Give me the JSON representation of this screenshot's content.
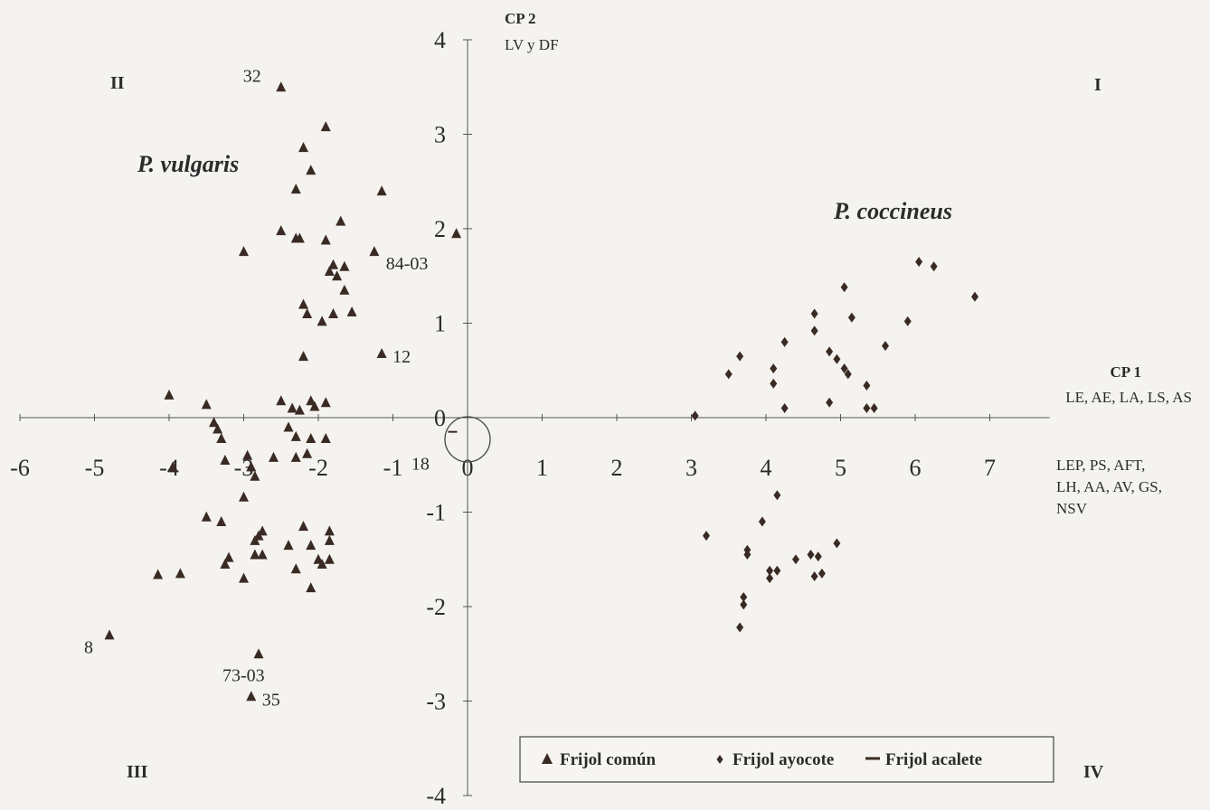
{
  "chart_data": {
    "type": "scatter",
    "xlim": [
      -6,
      7
    ],
    "ylim": [
      -4,
      4
    ],
    "x_ticks": [
      "-6",
      "-5",
      "-4",
      "-3",
      "-2",
      "-1",
      "0",
      "1",
      "2",
      "3",
      "4",
      "5",
      "6",
      "7"
    ],
    "y_ticks": [
      "4",
      "3",
      "2",
      "1",
      "0",
      "-1",
      "-2",
      "-3",
      "-4"
    ],
    "y_axis_title": "CP 2",
    "y_axis_subtitle": "LV y DF",
    "x_axis_title": "CP 1",
    "x_axis_subtitle": "LE, AE, LA, LS, AS",
    "x_axis_extra": [
      "LEP, PS, AFT,",
      "LH, AA, AV, GS,",
      "NSV"
    ],
    "quadrants": [
      "I",
      "II",
      "III",
      "IV"
    ],
    "group_labels": [
      "P. vulgaris",
      "P. coccineus"
    ],
    "point_labels": [
      {
        "text": "32",
        "x": -2.5,
        "y": 3.5
      },
      {
        "text": "84-03",
        "x": -0.1,
        "y": 1.95
      },
      {
        "text": "12",
        "x": -1.15,
        "y": 0.68
      },
      {
        "text": "18",
        "x": -0.05,
        "y": -0.15
      },
      {
        "text": "8",
        "x": -4.8,
        "y": -2.3
      },
      {
        "text": "73-03",
        "x": -2.8,
        "y": -2.5
      },
      {
        "text": "35",
        "x": -2.9,
        "y": -2.95
      }
    ],
    "series": [
      {
        "name": "Frijol común",
        "marker": "triangle",
        "points": [
          [
            -2.5,
            3.5
          ],
          [
            -1.9,
            3.08
          ],
          [
            -2.2,
            2.86
          ],
          [
            -2.1,
            2.62
          ],
          [
            -2.3,
            2.42
          ],
          [
            -1.15,
            2.4
          ],
          [
            -1.7,
            2.08
          ],
          [
            -2.5,
            1.98
          ],
          [
            -2.3,
            1.9
          ],
          [
            -2.25,
            1.9
          ],
          [
            -1.9,
            1.88
          ],
          [
            -3.0,
            1.76
          ],
          [
            -1.25,
            1.76
          ],
          [
            -1.8,
            1.62
          ],
          [
            -1.65,
            1.6
          ],
          [
            -1.85,
            1.55
          ],
          [
            -1.75,
            1.5
          ],
          [
            -1.65,
            1.35
          ],
          [
            -2.2,
            1.2
          ],
          [
            -2.15,
            1.1
          ],
          [
            -1.8,
            1.1
          ],
          [
            -1.55,
            1.12
          ],
          [
            -1.95,
            1.02
          ],
          [
            -2.2,
            0.65
          ],
          [
            -1.15,
            0.68
          ],
          [
            -0.15,
            1.95
          ],
          [
            -4.0,
            0.24
          ],
          [
            -3.5,
            0.14
          ],
          [
            -2.5,
            0.18
          ],
          [
            -2.1,
            0.18
          ],
          [
            -2.35,
            0.1
          ],
          [
            -2.25,
            0.08
          ],
          [
            -2.05,
            0.12
          ],
          [
            -1.9,
            0.16
          ],
          [
            -3.4,
            -0.05
          ],
          [
            -3.35,
            -0.12
          ],
          [
            -2.4,
            -0.1
          ],
          [
            -3.3,
            -0.22
          ],
          [
            -2.3,
            -0.2
          ],
          [
            -2.1,
            -0.22
          ],
          [
            -1.9,
            -0.22
          ],
          [
            -3.25,
            -0.45
          ],
          [
            -2.95,
            -0.4
          ],
          [
            -2.6,
            -0.42
          ],
          [
            -2.3,
            -0.42
          ],
          [
            -2.15,
            -0.38
          ],
          [
            -3.95,
            -0.52
          ],
          [
            -2.9,
            -0.52
          ],
          [
            -2.85,
            -0.62
          ],
          [
            -3.0,
            -0.84
          ],
          [
            -3.5,
            -1.05
          ],
          [
            -3.3,
            -1.1
          ],
          [
            -2.75,
            -1.2
          ],
          [
            -2.8,
            -1.25
          ],
          [
            -2.2,
            -1.15
          ],
          [
            -1.85,
            -1.2
          ],
          [
            -2.85,
            -1.3
          ],
          [
            -2.4,
            -1.35
          ],
          [
            -2.1,
            -1.35
          ],
          [
            -1.85,
            -1.3
          ],
          [
            -3.2,
            -1.48
          ],
          [
            -2.85,
            -1.45
          ],
          [
            -2.75,
            -1.45
          ],
          [
            -2.0,
            -1.5
          ],
          [
            -1.85,
            -1.5
          ],
          [
            -3.25,
            -1.55
          ],
          [
            -2.3,
            -1.6
          ],
          [
            -1.95,
            -1.55
          ],
          [
            -4.15,
            -1.66
          ],
          [
            -3.85,
            -1.65
          ],
          [
            -3.0,
            -1.7
          ],
          [
            -2.1,
            -1.8
          ],
          [
            -4.8,
            -2.3
          ],
          [
            -2.8,
            -2.5
          ],
          [
            -2.9,
            -2.95
          ]
        ]
      },
      {
        "name": "Frijol ayocote",
        "marker": "diamond",
        "points": [
          [
            6.05,
            1.65
          ],
          [
            6.25,
            1.6
          ],
          [
            6.8,
            1.28
          ],
          [
            5.05,
            1.38
          ],
          [
            5.15,
            1.06
          ],
          [
            4.65,
            1.1
          ],
          [
            5.9,
            1.02
          ],
          [
            4.65,
            0.92
          ],
          [
            4.25,
            0.8
          ],
          [
            5.6,
            0.76
          ],
          [
            4.85,
            0.7
          ],
          [
            4.95,
            0.62
          ],
          [
            3.65,
            0.65
          ],
          [
            4.1,
            0.52
          ],
          [
            5.05,
            0.52
          ],
          [
            5.1,
            0.46
          ],
          [
            3.5,
            0.46
          ],
          [
            4.1,
            0.36
          ],
          [
            5.35,
            0.34
          ],
          [
            4.85,
            0.16
          ],
          [
            4.25,
            0.1
          ],
          [
            5.35,
            0.1
          ],
          [
            5.45,
            0.1
          ],
          [
            3.05,
            0.02
          ],
          [
            4.15,
            -0.82
          ],
          [
            3.95,
            -1.1
          ],
          [
            3.2,
            -1.25
          ],
          [
            4.95,
            -1.33
          ],
          [
            3.75,
            -1.4
          ],
          [
            3.75,
            -1.45
          ],
          [
            4.6,
            -1.45
          ],
          [
            4.7,
            -1.47
          ],
          [
            4.4,
            -1.5
          ],
          [
            4.05,
            -1.62
          ],
          [
            4.15,
            -1.62
          ],
          [
            4.75,
            -1.65
          ],
          [
            4.65,
            -1.68
          ],
          [
            4.05,
            -1.7
          ],
          [
            3.7,
            -1.9
          ],
          [
            3.7,
            -1.98
          ],
          [
            3.65,
            -2.22
          ]
        ]
      },
      {
        "name": "Frijol acalete",
        "marker": "dash",
        "points": [
          [
            -0.2,
            -0.15
          ]
        ]
      }
    ]
  }
}
